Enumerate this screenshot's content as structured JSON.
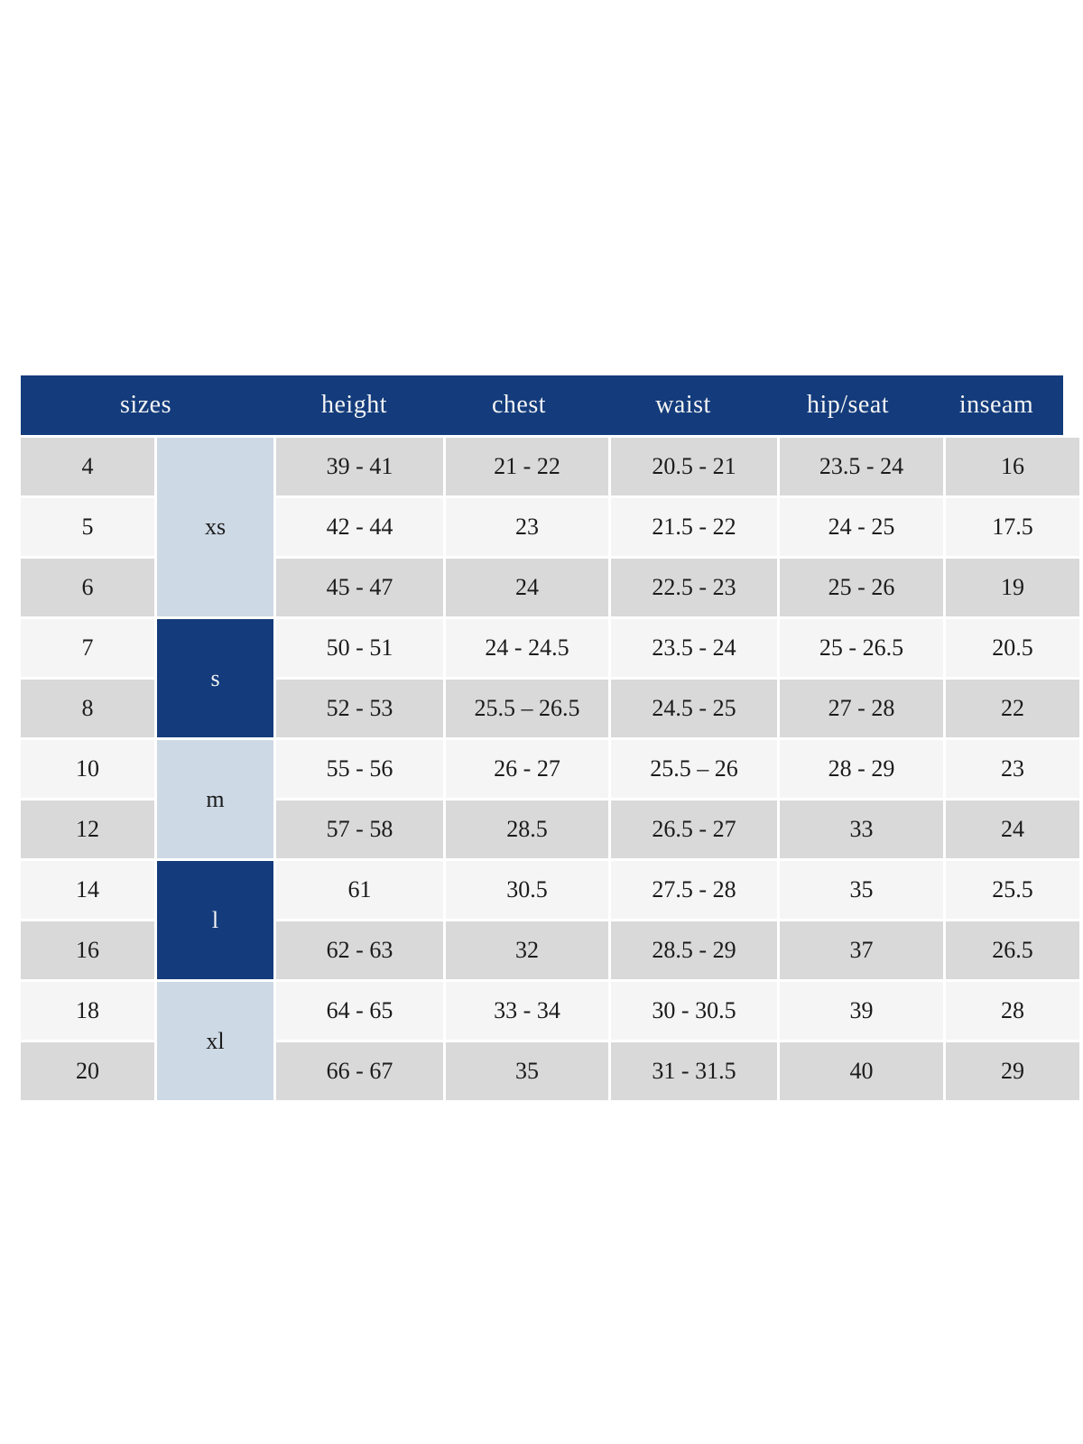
{
  "colors": {
    "header_bg": "#143c7c",
    "header_text": "#f5f5f5",
    "group_light_bg": "#cdd9e5",
    "group_dark_bg": "#143c7c",
    "row_gray": "#d9d9d9",
    "row_light": "#f5f5f5",
    "body_text": "#1b1b1b",
    "page_bg": "#ffffff"
  },
  "chart_data": {
    "type": "table",
    "title": "",
    "headers": [
      "sizes",
      "height",
      "chest",
      "waist",
      "hip/seat",
      "inseam"
    ],
    "groups": [
      {
        "label": "xs",
        "rows": 3,
        "style": "light"
      },
      {
        "label": "s",
        "rows": 2,
        "style": "dark"
      },
      {
        "label": "m",
        "rows": 2,
        "style": "light"
      },
      {
        "label": "l",
        "rows": 2,
        "style": "dark"
      },
      {
        "label": "xl",
        "rows": 2,
        "style": "light"
      }
    ],
    "rows": [
      {
        "size": "4",
        "height": "39 - 41",
        "chest": "21 - 22",
        "waist": "20.5 - 21",
        "hip_seat": "23.5 - 24",
        "inseam": "16"
      },
      {
        "size": "5",
        "height": "42 - 44",
        "chest": "23",
        "waist": "21.5 - 22",
        "hip_seat": "24 - 25",
        "inseam": "17.5"
      },
      {
        "size": "6",
        "height": "45 - 47",
        "chest": "24",
        "waist": "22.5 - 23",
        "hip_seat": "25 - 26",
        "inseam": "19"
      },
      {
        "size": "7",
        "height": "50 - 51",
        "chest": "24 - 24.5",
        "waist": "23.5 - 24",
        "hip_seat": "25 - 26.5",
        "inseam": "20.5"
      },
      {
        "size": "8",
        "height": "52 - 53",
        "chest": "25.5 – 26.5",
        "waist": "24.5 - 25",
        "hip_seat": "27 - 28",
        "inseam": "22"
      },
      {
        "size": "10",
        "height": "55 - 56",
        "chest": "26 - 27",
        "waist": "25.5 – 26",
        "hip_seat": "28 - 29",
        "inseam": "23"
      },
      {
        "size": "12",
        "height": "57 - 58",
        "chest": "28.5",
        "waist": "26.5 - 27",
        "hip_seat": "33",
        "inseam": "24"
      },
      {
        "size": "14",
        "height": "61",
        "chest": "30.5",
        "waist": "27.5 - 28",
        "hip_seat": "35",
        "inseam": "25.5"
      },
      {
        "size": "16",
        "height": "62 - 63",
        "chest": "32",
        "waist": "28.5 - 29",
        "hip_seat": "37",
        "inseam": "26.5"
      },
      {
        "size": "18",
        "height": "64 - 65",
        "chest": "33 - 34",
        "waist": "30 - 30.5",
        "hip_seat": "39",
        "inseam": "28"
      },
      {
        "size": "20",
        "height": "66 - 67",
        "chest": "35",
        "waist": "31 - 31.5",
        "hip_seat": "40",
        "inseam": "29"
      }
    ]
  }
}
